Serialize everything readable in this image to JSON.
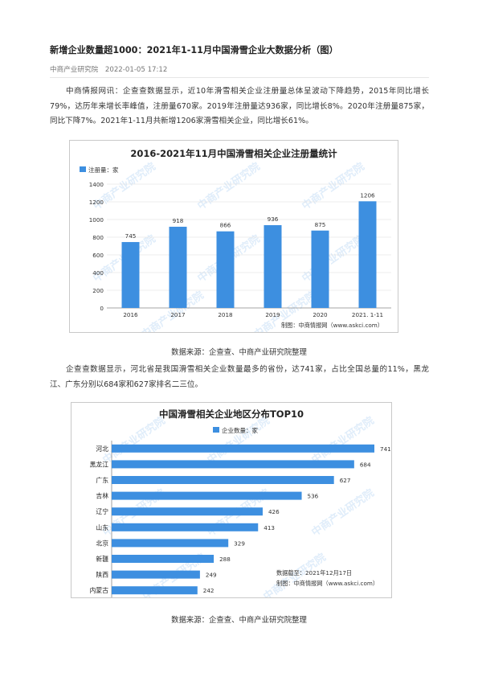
{
  "article": {
    "title": "新增企业数量超1000：2021年1-11月中国滑雪企业大数据分析（图）",
    "source_name": "中商产业研究院",
    "date": "2022-01-05 17:12",
    "paragraph1": "中商情报网讯：企查查数据显示，近10年滑雪相关企业注册量总体呈波动下降趋势，2015年同比增长79%，达历年来增长率峰值，注册量670家。2019年注册量达936家，同比增长8%。2020年注册量875家，同比下降7%。2021年1-11月共新增1206家滑雪相关企业，同比增长61%。",
    "caption1": "数据来源：企查查、中商产业研究院整理",
    "paragraph2": "企查查数据显示，河北省是我国滑雪相关企业数量最多的省份，达741家，占比全国总量的11%，黑龙江、广东分别以684家和627家排名二三位。",
    "caption2": "数据来源：企查查、中商产业研究院整理"
  },
  "chart_data": [
    {
      "type": "bar",
      "title": "2016-2021年11月中国滑雪相关企业注册量统计",
      "legend": "注册量：家",
      "legend_position": "top-left",
      "categories": [
        "2016",
        "2017",
        "2018",
        "2019",
        "2020",
        "2021. 1-11"
      ],
      "values": [
        745,
        918,
        866,
        936,
        875,
        1206
      ],
      "ylim": [
        0,
        1400
      ],
      "yticks": [
        0,
        200,
        400,
        600,
        800,
        1000,
        1200,
        1400
      ],
      "grid": true,
      "color": "#3d8fe0",
      "footer": "制图：中商情报网（www.askci.com）",
      "watermark": "中商产业研究院"
    },
    {
      "type": "bar",
      "orientation": "horizontal",
      "title": "中国滑雪相关企业地区分布TOP10",
      "legend": "企业数量：家",
      "legend_position": "top-center",
      "categories": [
        "河北",
        "黑龙江",
        "广东",
        "吉林",
        "辽宁",
        "山东",
        "北京",
        "新疆",
        "陕西",
        "内蒙古"
      ],
      "values": [
        741,
        684,
        627,
        536,
        426,
        413,
        329,
        288,
        249,
        242
      ],
      "xlim": [
        0,
        741
      ],
      "grid": false,
      "color": "#3d8fe0",
      "note_date": "数据截至：2021年12月17日",
      "footer": "制图：中商情报网（www.askci.com）",
      "watermark": "中商产业研究院"
    }
  ]
}
